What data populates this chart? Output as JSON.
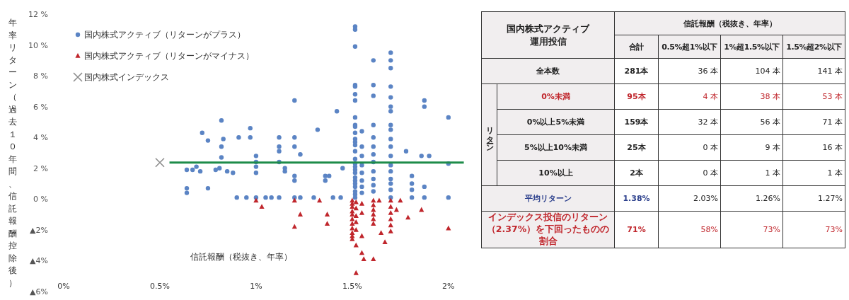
{
  "chart_data": [
    {
      "type": "scatter",
      "xlabel": "信託報酬（税抜き、年率）",
      "ylabel": "年率リターン（過去１０年間、信託報酬控除後）",
      "xlim": [
        0,
        2.1
      ],
      "ylim": [
        -6,
        12
      ],
      "legend": "top left",
      "xticks": [
        {
          "value": 0,
          "label": "0%"
        },
        {
          "value": 0.5,
          "label": "0.5%"
        },
        {
          "value": 1,
          "label": "1%"
        },
        {
          "value": 1.5,
          "label": "1.5%"
        },
        {
          "value": 2,
          "label": "2%"
        }
      ],
      "yticks": [
        {
          "value": 12,
          "label": "12 %"
        },
        {
          "value": 10,
          "label": "10 %"
        },
        {
          "value": 8,
          "label": "8 %"
        },
        {
          "value": 6,
          "label": "6 %"
        },
        {
          "value": 4,
          "label": "4 %"
        },
        {
          "value": 2,
          "label": "2 %"
        },
        {
          "value": 0,
          "label": "0 %"
        },
        {
          "value": -2,
          "label": "▲2%"
        },
        {
          "value": -4,
          "label": "▲4%"
        },
        {
          "value": -6,
          "label": "▲6%"
        }
      ],
      "series": [
        {
          "name": "国内株式アクティブ（リターンがプラス）",
          "color": "#5b84c4",
          "marker": "circle",
          "x": [
            1.515,
            1.515,
            1.515,
            1.515,
            1.515,
            1.515,
            1.515,
            1.515,
            1.515,
            1.515,
            1.515,
            1.515,
            1.515,
            1.515,
            1.515,
            1.515,
            1.515,
            1.515,
            1.515,
            1.515,
            1.515,
            1.515,
            1.515,
            1.515,
            1.515,
            1.515,
            1.515,
            1.55,
            1.55,
            1.55,
            1.55,
            1.55,
            1.55,
            1.55,
            1.55,
            1.61,
            1.61,
            1.61,
            1.61,
            1.61,
            1.61,
            1.61,
            1.61,
            1.61,
            1.61,
            1.61,
            1.61,
            1.7,
            1.7,
            1.7,
            1.7,
            1.7,
            1.7,
            1.7,
            1.7,
            1.7,
            1.7,
            1.7,
            1.7,
            1.7,
            1.7,
            1.7,
            1.7,
            1.7,
            1.7,
            1.78,
            1.81,
            1.81,
            1.81,
            1.81,
            1.875,
            1.875,
            1.875,
            1.875,
            1.86,
            1.9,
            2.0,
            2.0,
            2.0,
            1.2,
            1.2,
            1.2,
            1.2,
            1.2,
            1.2,
            1.23,
            1.23,
            1.32,
            1.42,
            1.36,
            1.36,
            1.4,
            1.44,
            1.3,
            1.0,
            1.0,
            1.0,
            1.0,
            1.0,
            0.97,
            0.97,
            1.12,
            1.12,
            1.12,
            1.12,
            1.12,
            1.15,
            1.15,
            0.82,
            0.82,
            0.82,
            0.72,
            0.75,
            0.75,
            0.83,
            0.91,
            0.64,
            0.64,
            0.64,
            0.67,
            0.69,
            0.71,
            0.79,
            0.81,
            0.85,
            0.88,
            0.9,
            0.95,
            1.05,
            1.08,
            1.38,
            1.45
          ],
          "values": [
            11.2,
            11.0,
            9.9,
            7.4,
            7.3,
            6.8,
            6.4,
            5.3,
            4.8,
            4.7,
            4.3,
            3.9,
            3.7,
            3.5,
            3.1,
            2.6,
            2.3,
            2.1,
            1.9,
            1.7,
            1.4,
            1.2,
            1.0,
            0.8,
            0.5,
            0.3,
            0.1,
            4.4,
            3.4,
            2.8,
            2.2,
            1.7,
            1.2,
            0.8,
            0.4,
            9.0,
            7.4,
            6.7,
            4.8,
            4.0,
            3.4,
            2.9,
            2.4,
            1.8,
            1.3,
            0.9,
            0.5,
            9.5,
            9.0,
            8.5,
            7.3,
            6.6,
            6.0,
            5.7,
            4.8,
            4.5,
            3.9,
            3.4,
            2.8,
            2.2,
            1.8,
            1.3,
            1.0,
            0.6,
            0.1,
            3.1,
            1.5,
            1.0,
            0.6,
            0.1,
            6.4,
            6.0,
            0.8,
            0.1,
            2.8,
            2.8,
            5.3,
            2.3,
            0.1,
            6.4,
            4.0,
            3.4,
            1.5,
            1.2,
            0.1,
            2.9,
            0.1,
            4.5,
            5.7,
            1.5,
            1.2,
            0.1,
            0.1,
            0.1,
            2.8,
            2.4,
            2.1,
            1.7,
            0.1,
            4.6,
            4.0,
            4.0,
            3.4,
            3.1,
            2.4,
            0.1,
            2.0,
            1.8,
            5.1,
            3.4,
            2.7,
            4.3,
            3.8,
            0.7,
            3.9,
            4.0,
            1.9,
            0.7,
            0.4,
            1.9,
            2.1,
            1.8,
            1.9,
            2.0,
            1.8,
            1.7,
            0.1,
            0.1,
            0.1,
            0.1,
            1.5,
            2.0
          ]
        },
        {
          "name": "国内株式アクティブ（リターンがマイナス）",
          "color": "#c0262c",
          "marker": "triangle",
          "x": [
            1.5,
            1.5,
            1.5,
            1.5,
            1.5,
            1.5,
            1.5,
            1.5,
            1.5,
            1.5,
            1.5,
            1.52,
            1.52,
            1.52,
            1.52,
            1.52,
            1.52,
            1.52,
            1.55,
            1.55,
            1.55,
            1.55,
            1.56,
            1.61,
            1.61,
            1.61,
            1.61,
            1.61,
            1.61,
            1.61,
            1.7,
            1.7,
            1.7,
            1.7,
            1.7,
            1.7,
            1.67,
            1.73,
            1.65,
            1.79,
            1.86,
            2.0,
            1.2,
            1.2,
            1.23,
            1.37,
            1.37,
            1.33,
            1.0,
            1.03,
            1.64,
            1.75
          ],
          "values": [
            -0.1,
            -0.3,
            -0.5,
            -0.8,
            -1.0,
            -1.3,
            -1.6,
            -1.9,
            -2.2,
            -2.4,
            -2.6,
            -0.2,
            -0.6,
            -1.1,
            -1.5,
            -2.0,
            -3.0,
            -4.8,
            -0.3,
            -0.9,
            -2.4,
            -3.5,
            -3.9,
            -0.1,
            -0.4,
            -0.7,
            -1.0,
            -1.3,
            -1.6,
            -3.9,
            -0.1,
            -0.5,
            -0.9,
            -1.3,
            -1.7,
            -2.1,
            -2.8,
            -0.7,
            -2.2,
            -1.2,
            -0.7,
            -1.9,
            -1.8,
            -0.1,
            -1.0,
            -1.0,
            -1.6,
            -0.1,
            -0.1,
            -0.5,
            -0.1,
            -0.1
          ]
        },
        {
          "name": "国内株式インデックス",
          "color": "#8c8c8c",
          "marker": "cross",
          "x": [
            0.5
          ],
          "values": [
            2.37
          ]
        },
        {
          "type": "line",
          "color": "#1e8c4a",
          "x": [
            0.55,
            2.08
          ],
          "values": [
            2.37,
            2.37
          ]
        }
      ]
    },
    {
      "type": "other",
      "annotations": [
        "国内株式アクティブ運用投信",
        "信託報酬（税抜き、年率）",
        "合計",
        "0.5%超1%以下",
        "1%超1.5%以下",
        "1.5%超2%以下",
        "全本数",
        "281本",
        "36 本",
        "104 本",
        "141 本",
        "リターン",
        "0%未満",
        "95本",
        "4 本",
        "38 本",
        "53 本",
        "0%以上5%未満",
        "159本",
        "32 本",
        "56 本",
        "71 本",
        "5%以上10%未満",
        "25本",
        "0 本",
        "9 本",
        "16 本",
        "10%以上",
        "2本",
        "0 本",
        "1 本",
        "1 本",
        "平均リターン",
        "1.38%",
        "2.03%",
        "1.26%",
        "1.27%",
        "インデックス投信のリターン（2.37%）を下回ったものの割合",
        "71%",
        "58%",
        "73%",
        "73%"
      ]
    }
  ]
}
